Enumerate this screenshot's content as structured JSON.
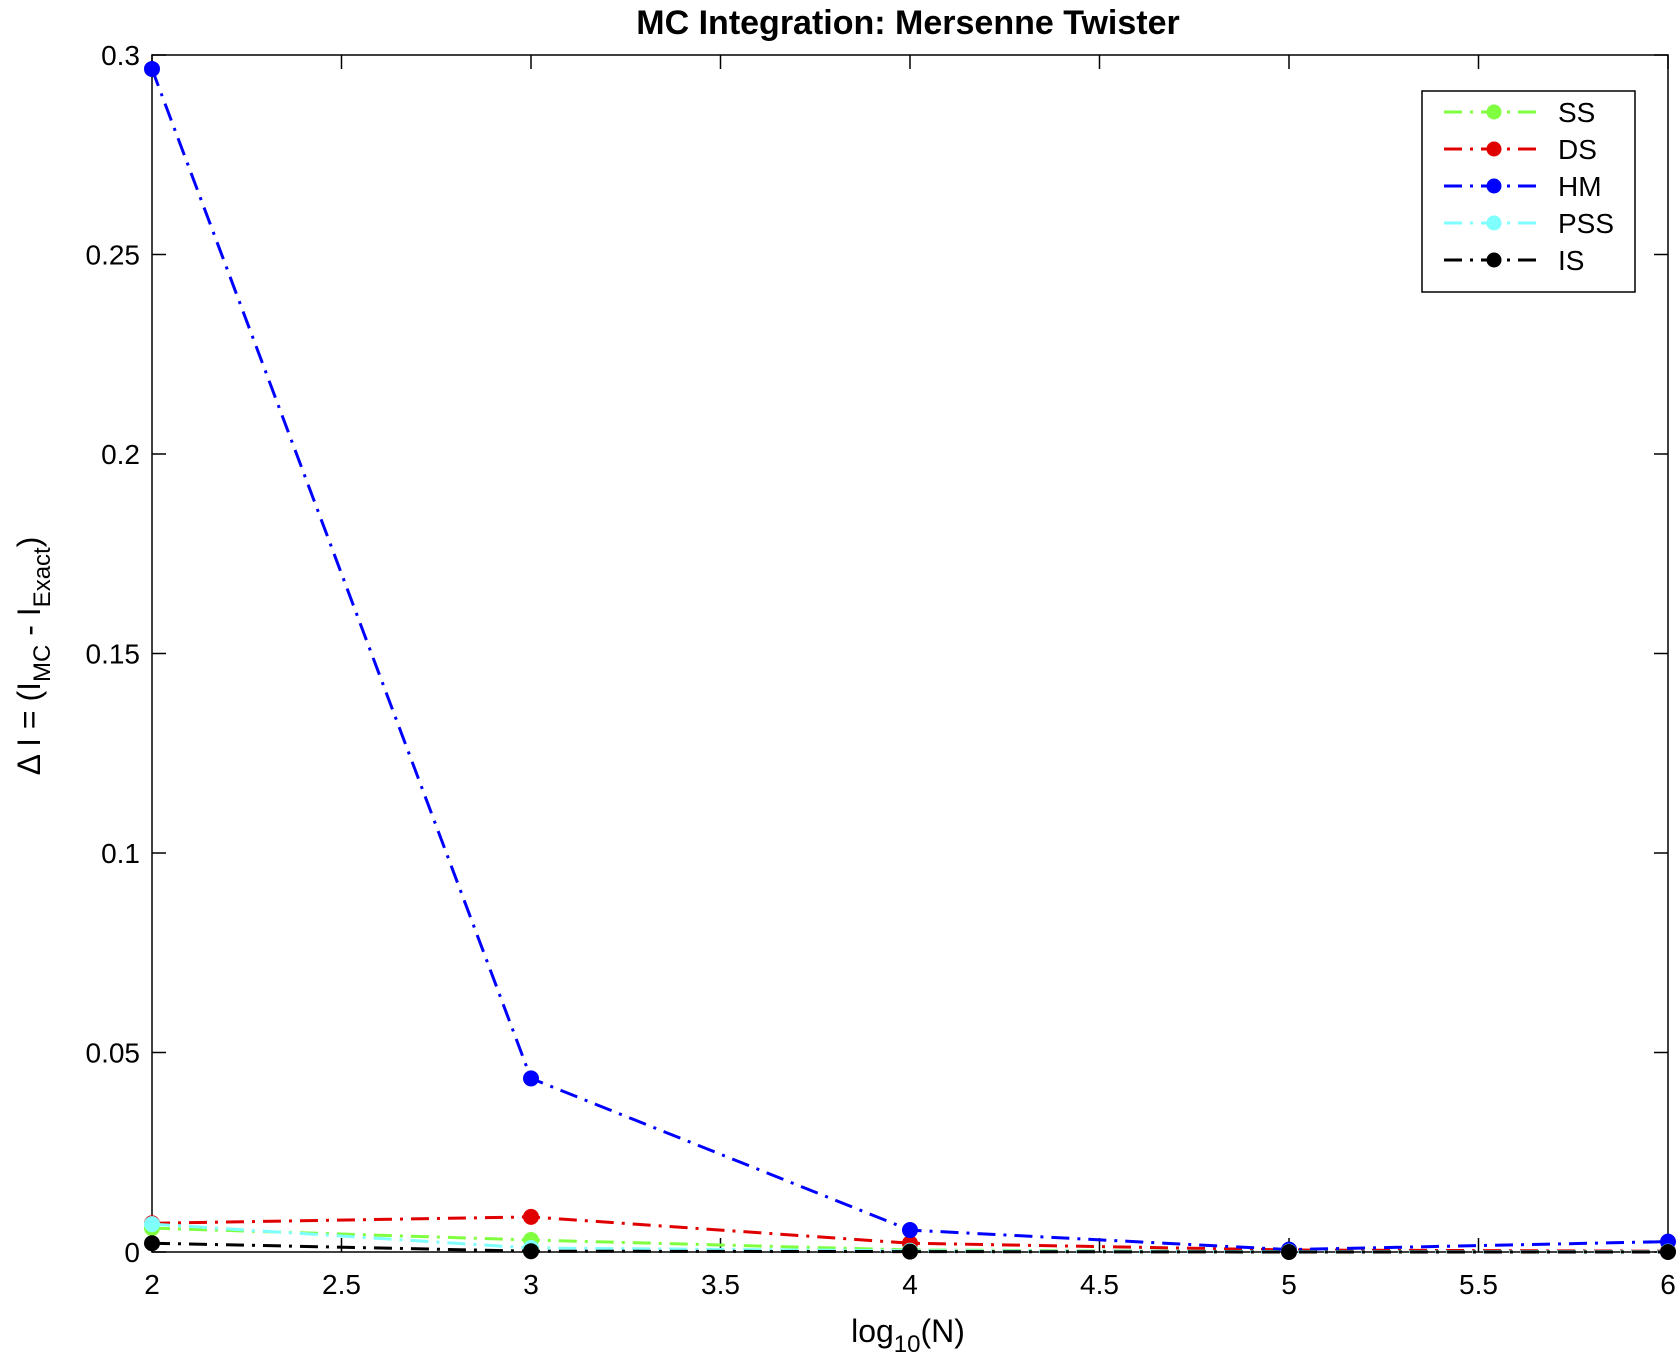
{
  "chart_data": {
    "type": "line",
    "title": "MC Integration: Mersenne Twister",
    "xlabel": {
      "pre": "log",
      "sub": "10",
      "post": "(N)"
    },
    "ylabel": {
      "pre": "Δ I = (I",
      "sub1": "MC",
      "mid": " - I",
      "sub2": "Exact",
      "post": ")"
    },
    "xlim": [
      2,
      6
    ],
    "ylim": [
      0,
      0.3
    ],
    "x_ticks": [
      "2",
      "2.5",
      "3",
      "3.5",
      "4",
      "4.5",
      "5",
      "5.5",
      "6"
    ],
    "y_ticks": [
      "0",
      "0.05",
      "0.1",
      "0.15",
      "0.2",
      "0.25",
      "0.3"
    ],
    "grid": false,
    "legend_position": "top-right",
    "x": [
      2,
      3,
      4,
      5,
      6
    ],
    "series": [
      {
        "name": "SS",
        "color": "#80ff40",
        "values": [
          0.006,
          0.003,
          0.0005,
          0.0001,
          0.0001
        ]
      },
      {
        "name": "DS",
        "color": "#e00000",
        "values": [
          0.0072,
          0.0088,
          0.0022,
          0.0005,
          0.0002
        ]
      },
      {
        "name": "HM",
        "color": "#0000ff",
        "values": [
          0.2965,
          0.0435,
          0.0055,
          0.0006,
          0.0026
        ]
      },
      {
        "name": "PSS",
        "color": "#80ffff",
        "values": [
          0.007,
          0.001,
          0.0003,
          0.0001,
          0.0001
        ]
      },
      {
        "name": "IS",
        "color": "#000000",
        "values": [
          0.0022,
          0.0002,
          0.0001,
          0.0,
          0.0
        ]
      }
    ]
  }
}
